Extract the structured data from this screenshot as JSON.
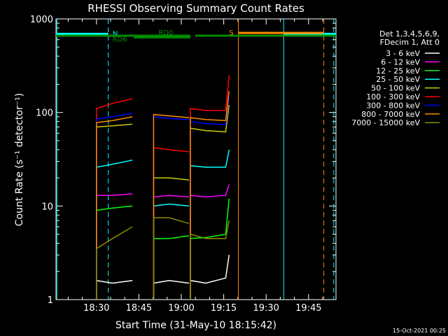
{
  "chart_data": {
    "type": "line",
    "title": "RHESSI Observing Summary Count Rates",
    "xlabel": "Start Time (31-May-10 18:15:42)",
    "ylabel": "Count Rate (s⁻¹ detector⁻¹)",
    "yscale": "log",
    "ylim": [
      1,
      1000
    ],
    "y_ticks": [
      1,
      10,
      100,
      1000
    ],
    "y_tick_labels": [
      "1",
      "10",
      "100",
      "1000"
    ],
    "xlim_minutes": [
      0,
      99
    ],
    "x_ticks_minutes": [
      14.3,
      29.3,
      44.3,
      59.3,
      74.3,
      89.3
    ],
    "x_tick_labels": [
      "18:30",
      "18:45",
      "19:00",
      "19:15",
      "19:30",
      "19:45"
    ],
    "timestamp": "15-Oct-2021 00:25",
    "legend_header": [
      "Det 1,3,4,5,6,9,",
      "FDecim 1, Att 0"
    ],
    "series": [
      {
        "name": "3 - 6 keV",
        "color": "#ffffff",
        "segments": [
          {
            "x": [
              14.3,
              20.0,
              27.0
            ],
            "y": [
              1.6,
              1.5,
              1.6
            ]
          },
          {
            "x": [
              34.5,
              40.0,
              47.0
            ],
            "y": [
              1.5,
              1.6,
              1.5
            ]
          },
          {
            "x": [
              47.5,
              53.0,
              60.0,
              61.2
            ],
            "y": [
              1.6,
              1.5,
              1.7,
              3
            ]
          }
        ]
      },
      {
        "name": "6 - 12 keV",
        "color": "#ff00ff",
        "segments": [
          {
            "x": [
              14.3,
              20.0,
              27.0
            ],
            "y": [
              13,
              13,
              13.5
            ]
          },
          {
            "x": [
              34.5,
              40.0,
              47.0
            ],
            "y": [
              12.5,
              13,
              12.5
            ]
          },
          {
            "x": [
              47.5,
              53.0,
              60.0,
              61.2
            ],
            "y": [
              13,
              12.5,
              13,
              17
            ]
          }
        ]
      },
      {
        "name": "12 - 25 keV",
        "color": "#00ff00",
        "segments": [
          {
            "x": [
              14.3,
              20.0,
              27.0
            ],
            "y": [
              9,
              9.5,
              10
            ]
          },
          {
            "x": [
              34.5,
              40.0,
              47.0
            ],
            "y": [
              4.5,
              4.5,
              4.8
            ]
          },
          {
            "x": [
              47.5,
              53.0,
              60.0,
              61.2
            ],
            "y": [
              4.5,
              4.6,
              5,
              12
            ]
          }
        ]
      },
      {
        "name": "25 - 50 keV",
        "color": "#00ffff",
        "segments": [
          {
            "x": [
              14.3,
              20.0,
              27.0
            ],
            "y": [
              26,
              28,
              31
            ]
          },
          {
            "x": [
              34.5,
              40.0,
              47.0
            ],
            "y": [
              10,
              10.5,
              10
            ]
          },
          {
            "x": [
              47.5,
              53.0,
              60.0,
              61.2
            ],
            "y": [
              27,
              26,
              26,
              40
            ]
          }
        ]
      },
      {
        "name": "50 - 100 keV",
        "color": "#cccc00",
        "segments": [
          {
            "x": [
              14.3,
              20.0,
              27.0
            ],
            "y": [
              70,
              72,
              75
            ]
          },
          {
            "x": [
              34.5,
              40.0,
              47.0
            ],
            "y": [
              20,
              20,
              19
            ]
          },
          {
            "x": [
              47.5,
              53.0,
              60.0,
              61.2
            ],
            "y": [
              68,
              64,
              62,
              120
            ]
          }
        ]
      },
      {
        "name": "100 - 300 keV",
        "color": "#ff0000",
        "segments": [
          {
            "x": [
              14.3,
              20.0,
              27.0
            ],
            "y": [
              110,
              125,
              140
            ]
          },
          {
            "x": [
              34.5,
              40.0,
              47.0
            ],
            "y": [
              42,
              40,
              38
            ]
          },
          {
            "x": [
              47.5,
              53.0,
              60.0,
              61.2
            ],
            "y": [
              110,
              105,
              105,
              250
            ]
          }
        ]
      },
      {
        "name": "300 - 800 keV",
        "color": "#0000ff",
        "segments": [
          {
            "x": [
              14.3,
              20.0,
              27.0
            ],
            "y": [
              85,
              90,
              98
            ]
          },
          {
            "x": [
              34.5,
              40.0,
              47.0
            ],
            "y": [
              90,
              86,
              84
            ]
          },
          {
            "x": [
              47.5,
              53.0,
              60.0,
              61.2
            ],
            "y": [
              80,
              76,
              74,
              150
            ]
          }
        ]
      },
      {
        "name": "800 - 7000 keV",
        "color": "#ff8c00",
        "segments": [
          {
            "x": [
              14.3,
              20.0,
              27.0
            ],
            "y": [
              78,
              82,
              90
            ]
          },
          {
            "x": [
              34.5,
              40.0,
              47.0
            ],
            "y": [
              95,
              92,
              88
            ]
          },
          {
            "x": [
              47.5,
              53.0,
              60.0,
              61.2
            ],
            "y": [
              88,
              84,
              82,
              170
            ]
          }
        ]
      },
      {
        "name": "7000 - 15000 keV",
        "color": "#8c8c00",
        "segments": [
          {
            "x": [
              14.3,
              20.0,
              27.0
            ],
            "y": [
              3.5,
              4.5,
              6
            ]
          },
          {
            "x": [
              34.5,
              40.0,
              47.0
            ],
            "y": [
              7.5,
              7.5,
              6.5
            ]
          },
          {
            "x": [
              47.5,
              53.0,
              60.0,
              61.2
            ],
            "y": [
              5,
              4.5,
              4.5,
              7
            ]
          }
        ]
      }
    ],
    "flag_bars": [
      {
        "label": "N",
        "color": "#00ffff",
        "level": 1.25,
        "segments": [
          [
            0,
            18.5
          ],
          [
            80.5,
            99
          ]
        ]
      },
      {
        "label": "RD0",
        "color": "#008c00",
        "level": 1.12,
        "segments": [
          [
            0,
            47.5
          ],
          [
            49.2,
            99
          ]
        ]
      },
      {
        "label": "RD6",
        "color": "#008c00",
        "level": 1.0,
        "segments": [
          [
            27.5,
            47.5
          ]
        ]
      },
      {
        "label": "S",
        "color": "#ff8c00",
        "level": 1.32,
        "segments": [
          [
            64.5,
            94.7
          ]
        ]
      }
    ],
    "markers": [
      {
        "x": 0.3,
        "color": "#00ffff",
        "style": "solid"
      },
      {
        "x": 18.5,
        "color": "#00ffff",
        "style": "dashed"
      },
      {
        "x": 64.5,
        "color": "#ff8c00",
        "style": "solid"
      },
      {
        "x": 80.5,
        "color": "#00ffff",
        "style": "solid"
      },
      {
        "x": 94.7,
        "color": "#ff8c00",
        "style": "dashed"
      },
      {
        "x": 98.2,
        "color": "#00ffff",
        "style": "dashed"
      }
    ]
  }
}
